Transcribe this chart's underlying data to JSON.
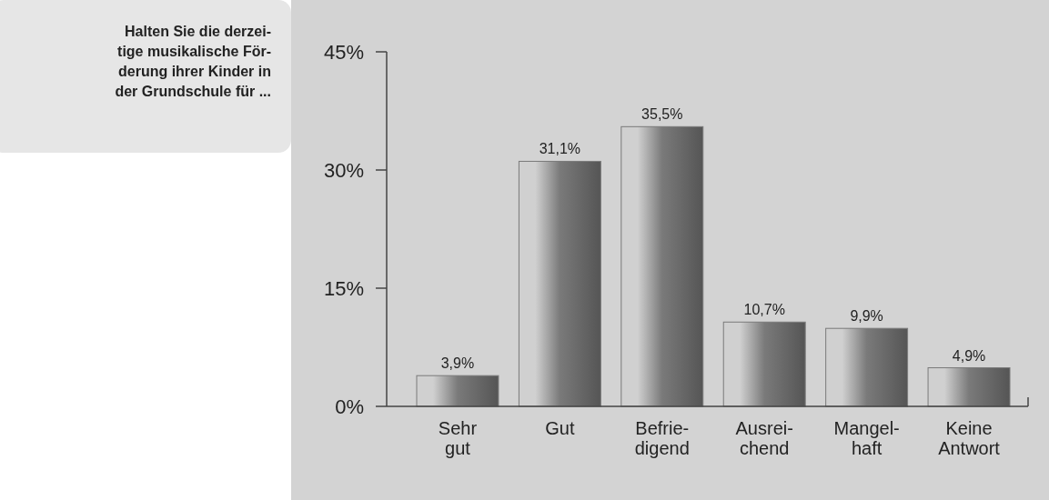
{
  "chart_data": {
    "type": "bar",
    "title": "Halten Sie die derzei-\ntige musikalische För-\nderung ihrer Kinder in\nder Grundschule für ...",
    "categories": [
      "Sehr\ngut",
      "Gut",
      "Befrie-\ndigend",
      "Ausrei-\nchend",
      "Mangel-\nhaft",
      "Keine\nAntwort"
    ],
    "values": [
      3.9,
      31.1,
      35.5,
      10.7,
      9.9,
      4.9
    ],
    "value_labels": [
      "3,9%",
      "31,1%",
      "35,5%",
      "10,7%",
      "9,9%",
      "4,9%"
    ],
    "color": "#7a7a7a",
    "ylim": [
      0,
      45
    ],
    "yticks": [
      {
        "value": 0,
        "label": "0%"
      },
      {
        "value": 15,
        "label": "15%"
      },
      {
        "value": 30,
        "label": "30%"
      },
      {
        "value": 45,
        "label": "45%"
      }
    ],
    "grid": false
  }
}
